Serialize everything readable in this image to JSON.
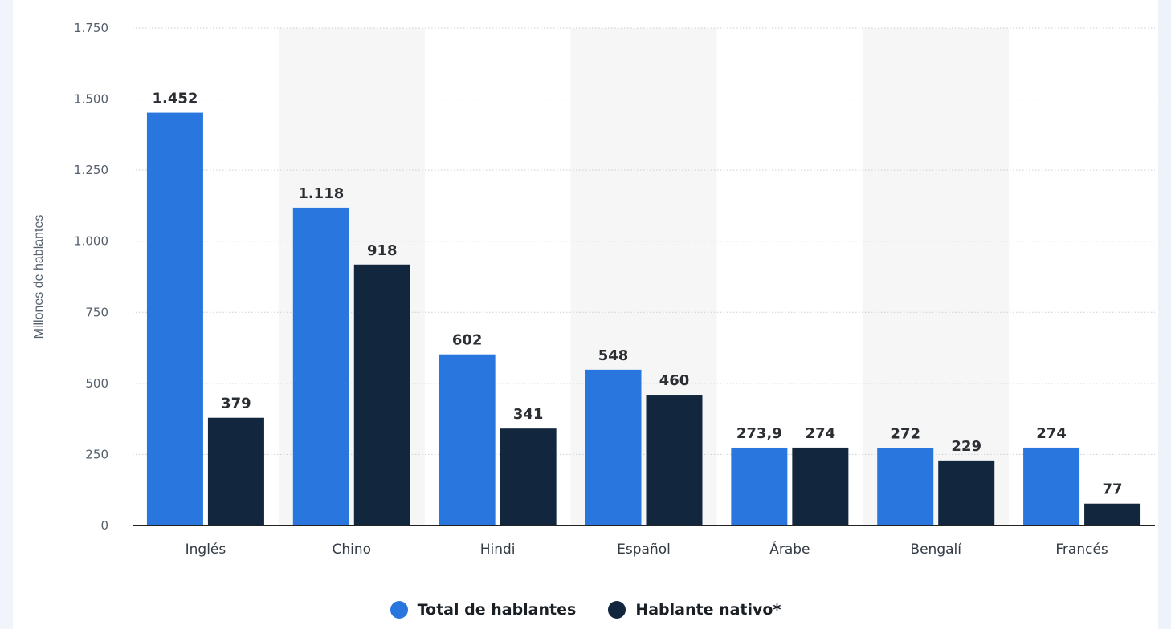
{
  "chart_data": {
    "type": "bar",
    "title": "",
    "xlabel": "",
    "ylabel": "Millones de hablantes",
    "ylim": [
      0,
      1750
    ],
    "yticks": [
      0,
      250,
      500,
      750,
      1000,
      1250,
      1500,
      1750
    ],
    "ytick_labels": [
      "0",
      "250",
      "500",
      "750",
      "1.000",
      "1.250",
      "1.500",
      "1.750"
    ],
    "grid": true,
    "legend_position": "bottom",
    "categories": [
      "Inglés",
      "Chino",
      "Hindi",
      "Español",
      "Árabe",
      "Bengalí",
      "Francés"
    ],
    "series": [
      {
        "name": "Total de hablantes",
        "color": "#2876de",
        "values": [
          1452,
          1118,
          602,
          548,
          273.9,
          272,
          274
        ],
        "labels": [
          "1.452",
          "1.118",
          "602",
          "548",
          "273,9",
          "272",
          "274"
        ]
      },
      {
        "name": "Hablante nativo*",
        "color": "#12263d",
        "values": [
          379,
          918,
          341,
          460,
          274,
          229,
          77
        ],
        "labels": [
          "379",
          "918",
          "341",
          "460",
          "274",
          "229",
          "77"
        ]
      }
    ]
  }
}
